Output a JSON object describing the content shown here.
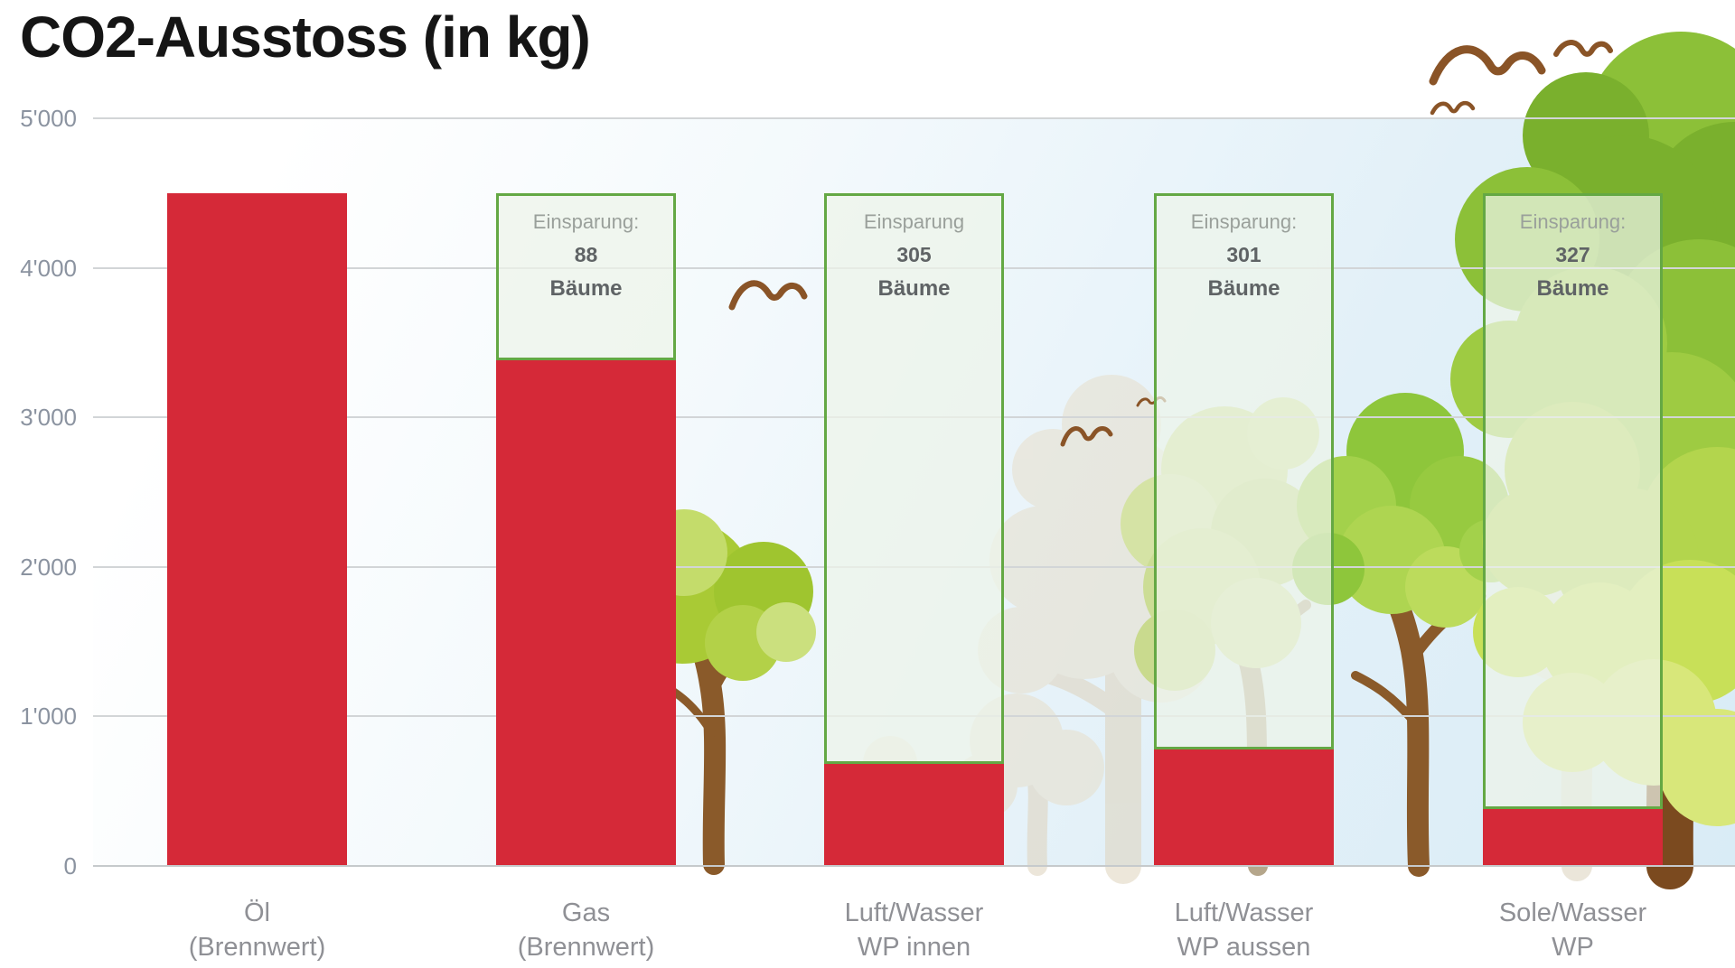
{
  "title": "CO2-Ausstoss (in kg)",
  "colors": {
    "bar_red": "#d52938",
    "savings_border_green": "#64a844",
    "savings_fill_green": "#edf4e9",
    "grid_line": "#d2d5d7",
    "axis_label": "#8b93a0",
    "category_label": "#8f9095",
    "savings_label_text": "#9aa09b",
    "savings_value_text": "#5f6365",
    "title_text": "#151515",
    "bar_value_text": "#ffffff"
  },
  "y_axis": {
    "ticks": [
      {
        "label": "5'000",
        "value": 5000
      },
      {
        "label": "4'000",
        "value": 4000
      },
      {
        "label": "3'000",
        "value": 3000
      },
      {
        "label": "2'000",
        "value": 2000
      },
      {
        "label": "1'000",
        "value": 1000
      },
      {
        "label": "0",
        "value": 0
      }
    ]
  },
  "bars": [
    {
      "line1": "Öl",
      "line2": "(Brennwert)",
      "value": 4500,
      "value_label": "4'500",
      "savings": null
    },
    {
      "line1": "Gas",
      "line2": "(Brennwert)",
      "value": 3400,
      "value_label": "3'400",
      "savings": {
        "label": "Einsparung:",
        "trees": "88",
        "unit": "Bäume"
      }
    },
    {
      "line1": "Luft/Wasser",
      "line2": "WP innen",
      "value": 700,
      "value_label": "700",
      "savings": {
        "label": "Einsparung",
        "trees": "305",
        "unit": "Bäume"
      }
    },
    {
      "line1": "Luft/Wasser",
      "line2": "WP aussen",
      "value": 800,
      "value_label": "800",
      "savings": {
        "label": "Einsparung:",
        "trees": "301",
        "unit": "Bäume"
      }
    },
    {
      "line1": "Sole/Wasser",
      "line2": "WP",
      "value": 400,
      "value_label": "400",
      "savings": {
        "label": "Einsparung:",
        "trees": "327",
        "unit": "Bäume"
      }
    }
  ],
  "chart_data": {
    "type": "bar",
    "title": "CO2-Ausstoss (in kg)",
    "categories": [
      "Öl (Brennwert)",
      "Gas (Brennwert)",
      "Luft/Wasser WP innen",
      "Luft/Wasser WP aussen",
      "Sole/Wasser WP"
    ],
    "values": [
      4500,
      3400,
      700,
      800,
      400
    ],
    "value_labels": [
      "4'500",
      "3'400",
      "700",
      "800",
      "400"
    ],
    "bar_color": "#d52938",
    "savings_boxes": [
      {
        "category": "Gas (Brennwert)",
        "label": "Einsparung:",
        "trees": 88,
        "unit": "Bäume",
        "span_values": [
          3400,
          4500
        ]
      },
      {
        "category": "Luft/Wasser WP innen",
        "label": "Einsparung",
        "trees": 305,
        "unit": "Bäume",
        "span_values": [
          700,
          4500
        ]
      },
      {
        "category": "Luft/Wasser WP aussen",
        "label": "Einsparung:",
        "trees": 301,
        "unit": "Bäume",
        "span_values": [
          800,
          4500
        ]
      },
      {
        "category": "Sole/Wasser WP",
        "label": "Einsparung:",
        "trees": 327,
        "unit": "Bäume",
        "span_values": [
          400,
          4500
        ]
      }
    ],
    "xlabel": "",
    "ylabel": "",
    "ylim": [
      0,
      5000
    ],
    "yticks": [
      0,
      1000,
      2000,
      3000,
      4000,
      5000
    ],
    "ytick_labels": [
      "0",
      "1'000",
      "2'000",
      "3'000",
      "4'000",
      "5'000"
    ],
    "grid": true,
    "legend": false,
    "background_decor": "cartoon trees, faded tree silhouettes and flying birds on light blue sky"
  }
}
